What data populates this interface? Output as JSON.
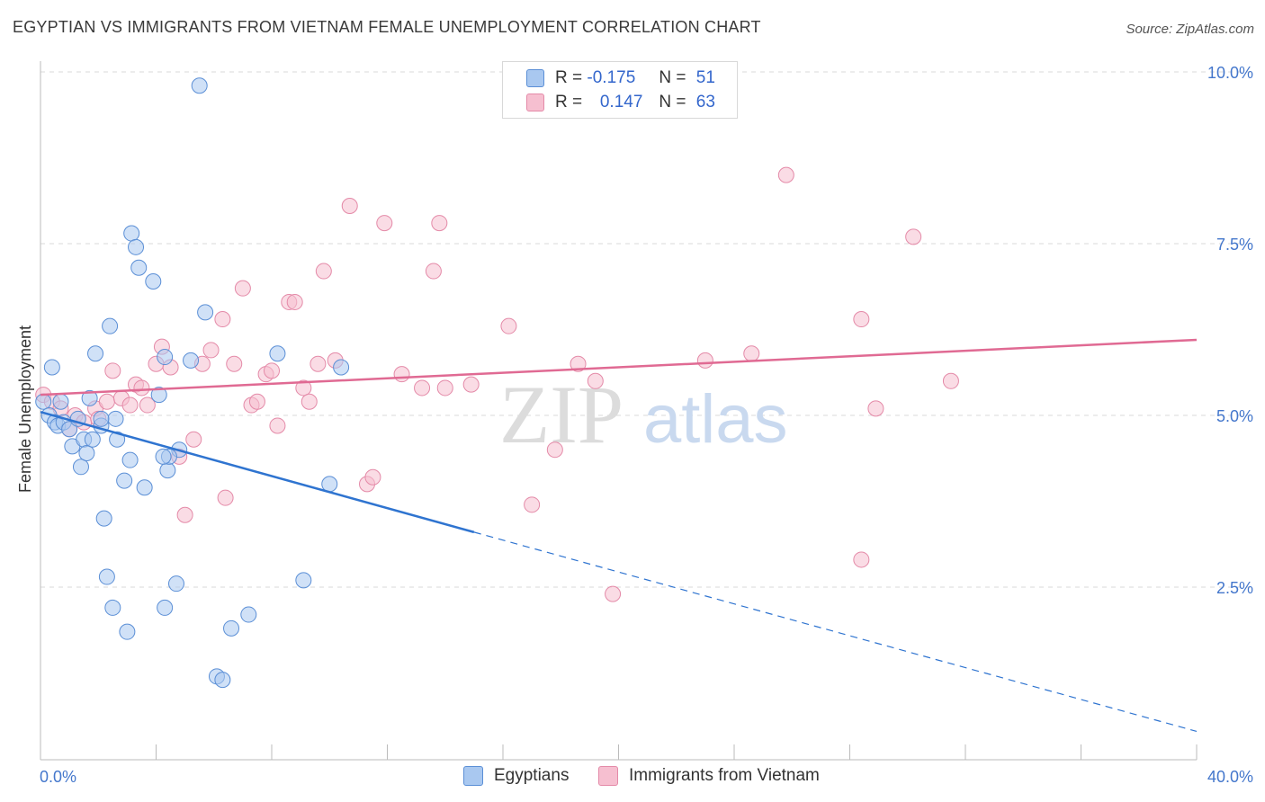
{
  "title": "EGYPTIAN VS IMMIGRANTS FROM VIETNAM FEMALE UNEMPLOYMENT CORRELATION CHART",
  "source": "Source: ZipAtlas.com",
  "watermark": {
    "zip": "ZIP",
    "atlas": "atlas"
  },
  "legend": {
    "rows": [
      {
        "r_label": "R =",
        "r_value": "-0.175",
        "n_label": "N =",
        "n_value": "51"
      },
      {
        "r_label": "R =",
        "r_value": "0.147",
        "n_label": "N =",
        "n_value": "63"
      }
    ]
  },
  "bottom_legend": [
    "Egyptians",
    "Immigrants from Vietnam"
  ],
  "colors": {
    "blue_fill": "#a9c8f0",
    "blue_stroke": "#5b8fd6",
    "blue_line": "#2f74d0",
    "pink_fill": "#f6bfd0",
    "pink_stroke": "#e48aa8",
    "pink_line": "#e06a93",
    "grid": "#d9d9d9",
    "tick_text": "#4477cc"
  },
  "chart_data": {
    "type": "scatter",
    "title": "EGYPTIAN VS IMMIGRANTS FROM VIETNAM FEMALE UNEMPLOYMENT CORRELATION CHART",
    "xlabel": "",
    "ylabel": "Female Unemployment",
    "xlim": [
      0,
      40
    ],
    "ylim": [
      0,
      10
    ],
    "x_tick_labels": [
      "0.0%",
      "40.0%"
    ],
    "y_ticks": [
      2.5,
      5.0,
      7.5,
      10.0
    ],
    "y_tick_labels": [
      "2.5%",
      "5.0%",
      "7.5%",
      "10.0%"
    ],
    "grid": true,
    "series": [
      {
        "name": "Egyptians",
        "r": -0.175,
        "n": 51,
        "trend": {
          "x0": 0,
          "y0": 5.05,
          "x1": 15,
          "y1": 3.3,
          "dash_to_x": 40,
          "dash_to_y": 0.4
        },
        "points": [
          [
            0.1,
            5.2
          ],
          [
            0.3,
            5.0
          ],
          [
            0.4,
            5.7
          ],
          [
            0.5,
            4.9
          ],
          [
            0.6,
            4.85
          ],
          [
            0.7,
            5.2
          ],
          [
            0.8,
            4.9
          ],
          [
            1.0,
            4.8
          ],
          [
            1.1,
            4.55
          ],
          [
            1.3,
            4.95
          ],
          [
            1.4,
            4.25
          ],
          [
            1.5,
            4.65
          ],
          [
            1.6,
            4.45
          ],
          [
            1.7,
            5.25
          ],
          [
            1.8,
            4.65
          ],
          [
            1.9,
            5.9
          ],
          [
            2.1,
            4.85
          ],
          [
            2.2,
            3.5
          ],
          [
            2.3,
            2.65
          ],
          [
            2.4,
            6.3
          ],
          [
            2.5,
            2.2
          ],
          [
            2.6,
            4.95
          ],
          [
            2.65,
            4.65
          ],
          [
            2.9,
            4.05
          ],
          [
            3.0,
            1.85
          ],
          [
            3.1,
            4.35
          ],
          [
            3.15,
            7.65
          ],
          [
            3.3,
            7.45
          ],
          [
            3.4,
            7.15
          ],
          [
            3.6,
            3.95
          ],
          [
            3.9,
            6.95
          ],
          [
            4.1,
            5.3
          ],
          [
            4.3,
            2.2
          ],
          [
            4.4,
            4.2
          ],
          [
            4.3,
            5.85
          ],
          [
            4.7,
            2.55
          ],
          [
            4.8,
            4.5
          ],
          [
            4.45,
            4.4
          ],
          [
            5.2,
            5.8
          ],
          [
            5.5,
            9.8
          ],
          [
            5.7,
            6.5
          ],
          [
            6.1,
            1.2
          ],
          [
            6.3,
            1.15
          ],
          [
            6.6,
            1.9
          ],
          [
            7.2,
            2.1
          ],
          [
            8.2,
            5.9
          ],
          [
            9.1,
            2.6
          ],
          [
            10.0,
            4.0
          ],
          [
            10.4,
            5.7
          ],
          [
            4.25,
            4.4
          ],
          [
            2.1,
            4.95
          ]
        ]
      },
      {
        "name": "Immigrants from Vietnam",
        "r": 0.147,
        "n": 63,
        "trend": {
          "x0": 0,
          "y0": 5.3,
          "x1": 40,
          "y1": 6.1
        },
        "points": [
          [
            0.1,
            5.3
          ],
          [
            0.4,
            5.2
          ],
          [
            0.7,
            5.1
          ],
          [
            1.0,
            4.8
          ],
          [
            1.2,
            5.0
          ],
          [
            1.5,
            4.9
          ],
          [
            1.9,
            5.1
          ],
          [
            2.0,
            4.95
          ],
          [
            2.3,
            5.2
          ],
          [
            2.5,
            5.65
          ],
          [
            2.8,
            5.25
          ],
          [
            3.1,
            5.15
          ],
          [
            3.3,
            5.45
          ],
          [
            3.5,
            5.4
          ],
          [
            3.7,
            5.15
          ],
          [
            4.0,
            5.75
          ],
          [
            4.2,
            6.0
          ],
          [
            4.5,
            5.7
          ],
          [
            4.8,
            4.4
          ],
          [
            5.0,
            3.55
          ],
          [
            5.3,
            4.65
          ],
          [
            5.6,
            5.75
          ],
          [
            5.9,
            5.95
          ],
          [
            6.3,
            6.4
          ],
          [
            6.4,
            3.8
          ],
          [
            6.7,
            5.75
          ],
          [
            7.0,
            6.85
          ],
          [
            7.3,
            5.15
          ],
          [
            7.5,
            5.2
          ],
          [
            7.8,
            5.6
          ],
          [
            8.0,
            5.65
          ],
          [
            8.2,
            4.85
          ],
          [
            8.6,
            6.65
          ],
          [
            8.8,
            6.65
          ],
          [
            9.1,
            5.4
          ],
          [
            9.3,
            5.2
          ],
          [
            9.6,
            5.75
          ],
          [
            9.8,
            7.1
          ],
          [
            10.2,
            5.8
          ],
          [
            10.7,
            8.05
          ],
          [
            11.3,
            4.0
          ],
          [
            11.5,
            4.1
          ],
          [
            11.9,
            7.8
          ],
          [
            12.5,
            5.6
          ],
          [
            13.2,
            5.4
          ],
          [
            13.6,
            7.1
          ],
          [
            13.8,
            7.8
          ],
          [
            14.0,
            5.4
          ],
          [
            14.9,
            5.45
          ],
          [
            16.2,
            6.3
          ],
          [
            17.0,
            3.7
          ],
          [
            17.8,
            4.5
          ],
          [
            18.6,
            5.75
          ],
          [
            19.2,
            5.5
          ],
          [
            19.8,
            2.4
          ],
          [
            23.0,
            5.8
          ],
          [
            24.6,
            5.9
          ],
          [
            25.8,
            8.5
          ],
          [
            28.4,
            6.4
          ],
          [
            28.4,
            2.9
          ],
          [
            28.9,
            5.1
          ],
          [
            30.2,
            7.6
          ],
          [
            31.5,
            5.5
          ]
        ]
      }
    ]
  }
}
